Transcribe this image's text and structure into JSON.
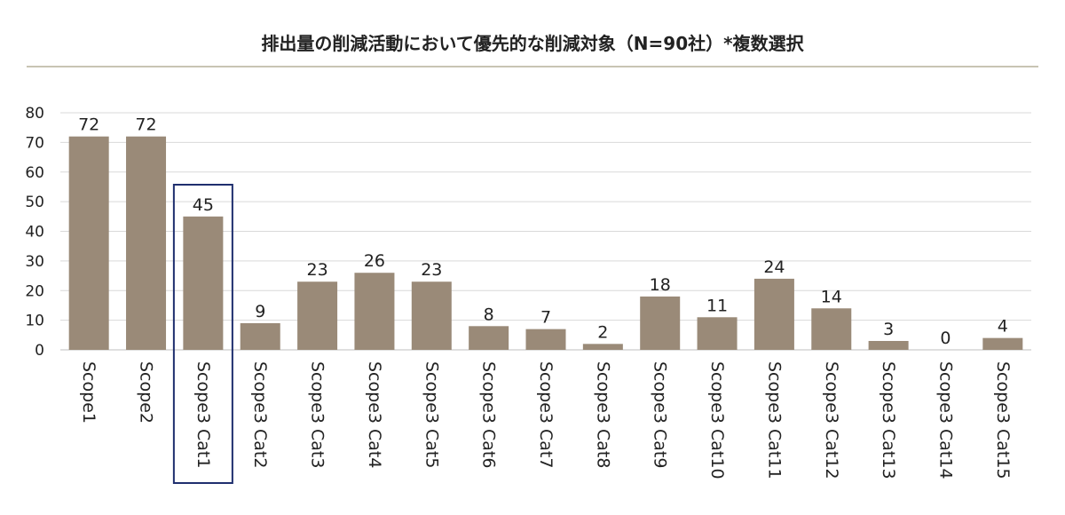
{
  "chart_data": {
    "type": "bar",
    "title": "排出量の削減活動において優先的な削減対象（N=90社）*複数選択",
    "categories": [
      "Scope1",
      "Scope2",
      "Scope3 Cat1",
      "Scope3 Cat2",
      "Scope3 Cat3",
      "Scope3 Cat4",
      "Scope3 Cat5",
      "Scope3 Cat6",
      "Scope3 Cat7",
      "Scope3 Cat8",
      "Scope3 Cat9",
      "Scope3 Cat10",
      "Scope3 Cat11",
      "Scope3 Cat12",
      "Scope3 Cat13",
      "Scope3 Cat14",
      "Scope3 Cat15"
    ],
    "values": [
      72,
      72,
      45,
      9,
      23,
      26,
      23,
      8,
      7,
      2,
      18,
      11,
      24,
      14,
      3,
      0,
      4
    ],
    "ylim": [
      0,
      80
    ],
    "yticks": [
      0,
      10,
      20,
      30,
      40,
      50,
      60,
      70,
      80
    ],
    "grid": true,
    "highlight_category": "Scope3 Cat1",
    "colors": {
      "bar": "#9a8a78",
      "grid": "#d9d9d9",
      "title_rule": "#b5b09a",
      "highlight_box": "#1f2f6e"
    }
  }
}
